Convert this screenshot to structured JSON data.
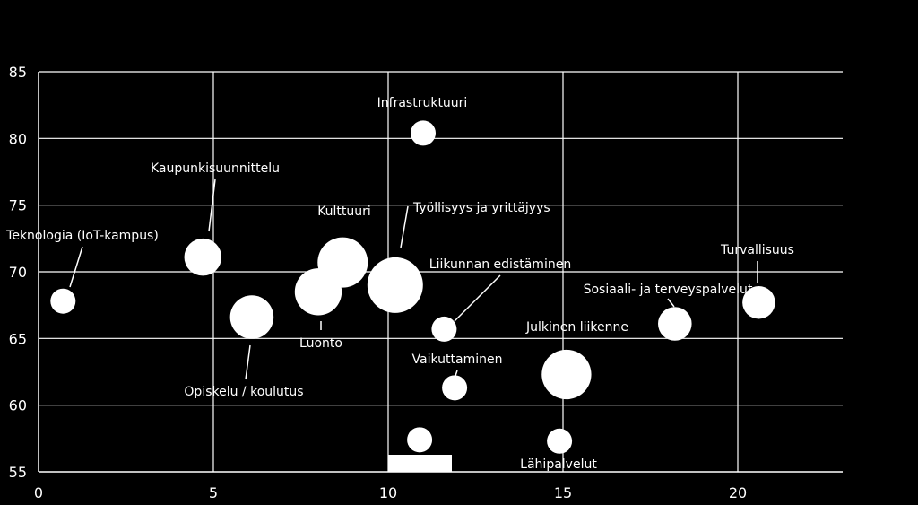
{
  "chart_data": {
    "type": "bubble",
    "title": "",
    "xlabel": "",
    "ylabel": "",
    "xlim": [
      0,
      23
    ],
    "ylim": [
      55,
      85
    ],
    "x_ticks": [
      0,
      5,
      10,
      15,
      20
    ],
    "y_ticks": [
      55,
      60,
      65,
      70,
      75,
      80,
      85
    ],
    "grid": true,
    "colors": {
      "background": "#000000",
      "marks": "#ffffff",
      "grid": "#ffffff"
    },
    "points": [
      {
        "label": "Teknologia (IoT-kampus)",
        "x": 0.7,
        "y": 67.8,
        "size": 1.0
      },
      {
        "label": "Kaupunkisuunnittelu",
        "x": 4.7,
        "y": 71.1,
        "size": 2.2
      },
      {
        "label": "Opiskelu / koulutus",
        "x": 6.1,
        "y": 66.6,
        "size": 3.0
      },
      {
        "label": "Luonto",
        "x": 8.0,
        "y": 68.5,
        "size": 3.5
      },
      {
        "label": "Kulttuuri",
        "x": 8.7,
        "y": 70.7,
        "size": 4.0
      },
      {
        "label": "Työllisyys ja yrittäjyys",
        "x": 10.2,
        "y": 69.0,
        "size": 4.9
      },
      {
        "label": "Infrastruktuuri",
        "x": 11.0,
        "y": 80.4,
        "size": 1.0
      },
      {
        "label": "Liikunnan edistäminen",
        "x": 11.6,
        "y": 65.7,
        "size": 1.0
      },
      {
        "label": "Vaikuttaminen",
        "x": 11.9,
        "y": 61.3,
        "size": 1.0
      },
      {
        "label": "",
        "x": 10.9,
        "y": 57.4,
        "size": 1.0
      },
      {
        "label": "Julkinen liikenne",
        "x": 15.1,
        "y": 62.3,
        "size": 3.9
      },
      {
        "label": "Lähipalvelut",
        "x": 14.9,
        "y": 57.3,
        "size": 1.0
      },
      {
        "label": "Sosiaali- ja terveyspalvelut",
        "x": 18.2,
        "y": 66.1,
        "size": 1.8
      },
      {
        "label": "Turvallisuus",
        "x": 20.6,
        "y": 67.7,
        "size": 1.7
      }
    ]
  }
}
